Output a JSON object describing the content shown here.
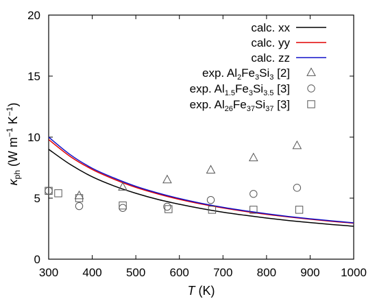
{
  "chart_data": {
    "type": "line",
    "xlim": [
      300,
      1000
    ],
    "ylim": [
      0,
      20
    ],
    "xticks": [
      300,
      400,
      500,
      600,
      700,
      800,
      900,
      1000
    ],
    "yticks": [
      0,
      5,
      10,
      15,
      20
    ],
    "xlabel": {
      "italic": "T",
      "rest": " (K)"
    },
    "ylabel": {
      "main": "κ",
      "sub": "ph",
      "rest": " (W m",
      "sup": "−1",
      "rest2": " K",
      "sup2": "−1",
      "close": ")"
    },
    "legend_position": "top-right",
    "colors": {
      "xx": "#000000",
      "yy": "#e00000",
      "zz": "#1010c8",
      "markers": "#555555"
    },
    "line_series": [
      {
        "key": "xx",
        "name": "calc. xx",
        "x": [
          300,
          350,
          400,
          450,
          500,
          550,
          600,
          650,
          700,
          750,
          800,
          850,
          900,
          950,
          1000
        ],
        "y": [
          9.0,
          7.75,
          6.75,
          6.0,
          5.4,
          4.9,
          4.5,
          4.15,
          3.85,
          3.6,
          3.37,
          3.17,
          3.0,
          2.84,
          2.7
        ]
      },
      {
        "key": "yy",
        "name": "calc. yy",
        "x": [
          300,
          350,
          400,
          450,
          500,
          550,
          600,
          650,
          700,
          750,
          800,
          850,
          900,
          950,
          1000
        ],
        "y": [
          9.8,
          8.4,
          7.35,
          6.55,
          5.88,
          5.35,
          4.9,
          4.52,
          4.2,
          3.92,
          3.67,
          3.46,
          3.27,
          3.1,
          2.95
        ]
      },
      {
        "key": "zz",
        "name": "calc. zz",
        "x": [
          300,
          350,
          400,
          450,
          500,
          550,
          600,
          650,
          700,
          750,
          800,
          850,
          900,
          950,
          1000
        ],
        "y": [
          10.0,
          8.55,
          7.45,
          6.65,
          5.97,
          5.43,
          4.97,
          4.58,
          4.25,
          3.97,
          3.72,
          3.5,
          3.31,
          3.14,
          2.98
        ]
      }
    ],
    "scatter_series": [
      {
        "marker": "triangle",
        "name_parts": [
          {
            "t": "exp. Al"
          },
          {
            "t": "2",
            "sub": true
          },
          {
            "t": "Fe"
          },
          {
            "t": "3",
            "sub": true
          },
          {
            "t": "Si"
          },
          {
            "t": "3",
            "sub": true
          },
          {
            "t": " [2]"
          }
        ],
        "points": [
          [
            370,
            5.2
          ],
          [
            470,
            5.9
          ],
          [
            572,
            6.5
          ],
          [
            672,
            7.3
          ],
          [
            770,
            8.3
          ],
          [
            870,
            9.3
          ]
        ]
      },
      {
        "marker": "circle",
        "name_parts": [
          {
            "t": "exp. Al"
          },
          {
            "t": "1.5",
            "sub": true
          },
          {
            "t": "Fe"
          },
          {
            "t": "3",
            "sub": true
          },
          {
            "t": "Si"
          },
          {
            "t": "3.5",
            "sub": true
          },
          {
            "t": " [3]"
          }
        ],
        "points": [
          [
            300,
            5.6
          ],
          [
            370,
            4.35
          ],
          [
            470,
            4.2
          ],
          [
            572,
            4.3
          ],
          [
            672,
            4.85
          ],
          [
            770,
            5.35
          ],
          [
            870,
            5.85
          ]
        ]
      },
      {
        "marker": "square",
        "name_parts": [
          {
            "t": "exp. Al"
          },
          {
            "t": "26",
            "sub": true
          },
          {
            "t": "Fe"
          },
          {
            "t": "37",
            "sub": true
          },
          {
            "t": "Si"
          },
          {
            "t": "37",
            "sub": true
          },
          {
            "t": " [3]"
          }
        ],
        "points": [
          [
            300,
            5.6
          ],
          [
            322,
            5.4
          ],
          [
            370,
            5.0
          ],
          [
            470,
            4.4
          ],
          [
            575,
            4.1
          ],
          [
            675,
            4.05
          ],
          [
            770,
            4.05
          ],
          [
            875,
            4.05
          ]
        ]
      }
    ]
  }
}
